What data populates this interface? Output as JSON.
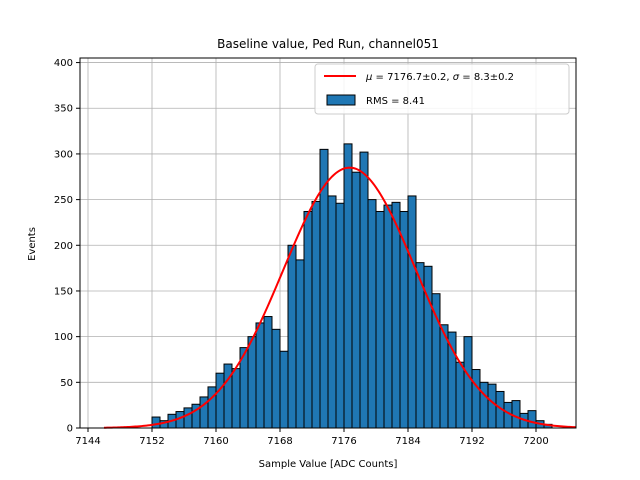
{
  "chart_data": {
    "type": "bar",
    "title": "Baseline value, Ped Run, channel051",
    "xlabel": "Sample Value [ADC Counts]",
    "ylabel": "Events",
    "xlim": [
      7143,
      7205
    ],
    "ylim": [
      0,
      405
    ],
    "xticks": [
      7144,
      7152,
      7160,
      7168,
      7176,
      7184,
      7192,
      7200
    ],
    "yticks": [
      0,
      50,
      100,
      150,
      200,
      250,
      300,
      350,
      400
    ],
    "grid": true,
    "legend_position": "top-right",
    "histogram": {
      "bin_start": 7152,
      "bin_width": 1,
      "counts": [
        12,
        8,
        15,
        18,
        22,
        26,
        34,
        45,
        60,
        70,
        65,
        88,
        100,
        115,
        122,
        108,
        84,
        200,
        184,
        237,
        248,
        305,
        254,
        246,
        311,
        280,
        302,
        250,
        237,
        244,
        247,
        237,
        254,
        181,
        177,
        147,
        113,
        105,
        72,
        100,
        64,
        50,
        48,
        40,
        28,
        30,
        16,
        19,
        8,
        4
      ],
      "label": "RMS = 8.41",
      "color": "#1f77b4",
      "edge_color": "#000000"
    },
    "fit": {
      "label": "$\\mu = 7176.7\\pm0.2$, $\\sigma = 8.3\\pm0.2$",
      "label_parts": {
        "mu_sym": "μ",
        "eq": " = ",
        "mu_val": "7176.7±0.2, ",
        "sigma_sym": "σ",
        "sigma_val": "8.3±0.2"
      },
      "mu": 7176.7,
      "sigma": 8.3,
      "amplitude": 285,
      "x_range": [
        7146,
        7205
      ],
      "color": "#ff0000"
    }
  }
}
